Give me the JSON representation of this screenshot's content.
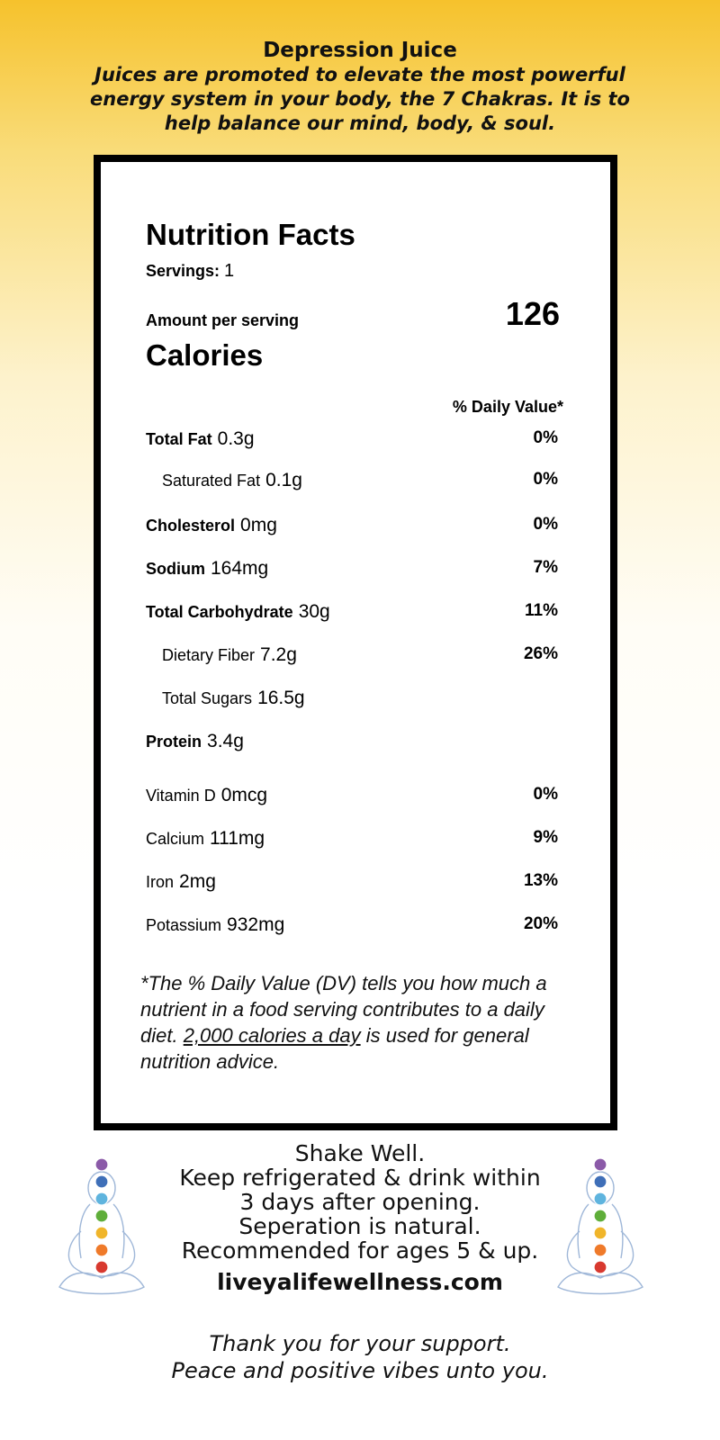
{
  "header": {
    "title": "Depression Juice",
    "subtitle": "Juices are promoted to elevate the most powerful energy system in your body, the 7 Chakras. It is to help balance our mind, body, & soul."
  },
  "label": {
    "title": "Nutrition Facts",
    "servings_label": "Servings:",
    "servings_value": "1",
    "amount_label": "Amount per serving",
    "calories_label": "Calories",
    "calories_value": "126",
    "dv_header": "% Daily Value*",
    "nutrients": [
      {
        "name": "Total Fat",
        "amount": "0.3g",
        "dv": "0%"
      },
      {
        "name": "Saturated Fat",
        "amount": "0.1g",
        "dv": "0%"
      },
      {
        "name": "Cholesterol",
        "amount": "0mg",
        "dv": "0%"
      },
      {
        "name": "Sodium",
        "amount": "164mg",
        "dv": "7%"
      },
      {
        "name": "Total Carbohydrate",
        "amount": "30g",
        "dv": "11%"
      },
      {
        "name": "Dietary Fiber",
        "amount": "7.2g",
        "dv": "26%"
      },
      {
        "name": "Total Sugars",
        "amount": "16.5g",
        "dv": ""
      },
      {
        "name": "Protein",
        "amount": "3.4g",
        "dv": ""
      },
      {
        "name": "Vitamin D",
        "amount": "0mcg",
        "dv": "0%"
      },
      {
        "name": "Calcium",
        "amount": "111mg",
        "dv": "9%"
      },
      {
        "name": "Iron",
        "amount": "2mg",
        "dv": "13%"
      },
      {
        "name": "Potassium",
        "amount": "932mg",
        "dv": "20%"
      }
    ],
    "footnote_pre": "*The % Daily Value (DV) tells you how much a nutrient in a food serving contributes to a daily diet. ",
    "footnote_underlined": "2,000 calories a day",
    "footnote_post": " is used for general nutrition advice."
  },
  "instructions": {
    "lines": [
      "Shake Well.",
      "Keep refrigerated & drink within",
      "3 days after opening.",
      "Seperation is natural.",
      "Recommended for ages 5 & up."
    ],
    "website": "liveyalifewellness.com",
    "thanks": [
      "Thank you for your support.",
      "Peace and positive vibes unto you."
    ]
  },
  "chakra_colors": [
    "#8b5aa8",
    "#3f6fb8",
    "#5fb4de",
    "#5fae3a",
    "#f0b52a",
    "#ef7a2a",
    "#d8392f"
  ],
  "icons": {
    "figure": "meditating-chakra-figure-icon"
  }
}
